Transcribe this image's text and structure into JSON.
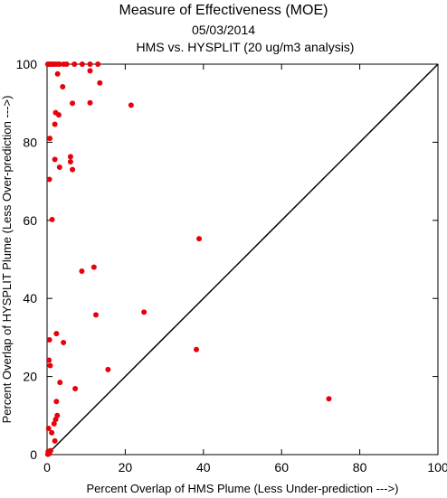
{
  "chart_data": {
    "type": "scatter",
    "title": "Measure of Effectiveness (MOE)",
    "subtitle": "05/03/2014",
    "subtitle2": "HMS vs. HYSPLIT  (20 ug/m3 analysis)",
    "xlabel": "Percent Overlap of HMS Plume (Less Under-prediction --->)",
    "ylabel": "Percent Overlap of HYSPLIT Plume (Less Over-prediction --->)",
    "xlim": [
      0,
      100
    ],
    "ylim": [
      0,
      100
    ],
    "xticks": [
      "0",
      "20",
      "40",
      "60",
      "80",
      "100"
    ],
    "yticks": [
      "0",
      "20",
      "40",
      "60",
      "80",
      "100"
    ],
    "grid": false,
    "reference_line": "diagonal y = x",
    "point_color": "#e8000b",
    "points": [
      [
        0.2,
        100
      ],
      [
        0.6,
        100
      ],
      [
        1.0,
        100
      ],
      [
        1.5,
        100
      ],
      [
        2.0,
        100
      ],
      [
        2.6,
        100
      ],
      [
        3.2,
        100
      ],
      [
        4.3,
        100
      ],
      [
        5.0,
        100
      ],
      [
        7.0,
        100
      ],
      [
        9.0,
        100
      ],
      [
        11.0,
        100
      ],
      [
        13.0,
        100
      ],
      [
        2.7,
        97.5
      ],
      [
        11.0,
        98.3
      ],
      [
        4.0,
        94.2
      ],
      [
        13.5,
        95.2
      ],
      [
        6.5,
        90.0
      ],
      [
        11.0,
        90.1
      ],
      [
        21.5,
        89.5
      ],
      [
        2.2,
        87.6
      ],
      [
        3.0,
        87.0
      ],
      [
        2.0,
        84.6
      ],
      [
        0.7,
        81.0
      ],
      [
        6.0,
        76.3
      ],
      [
        2.0,
        75.6
      ],
      [
        6.0,
        75.0
      ],
      [
        3.2,
        73.6
      ],
      [
        6.5,
        73.0
      ],
      [
        0.6,
        70.5
      ],
      [
        1.3,
        60.2
      ],
      [
        38.9,
        55.3
      ],
      [
        12.0,
        48.0
      ],
      [
        8.9,
        47.0
      ],
      [
        24.8,
        36.5
      ],
      [
        12.5,
        35.8
      ],
      [
        2.4,
        31.0
      ],
      [
        4.2,
        28.7
      ],
      [
        0.6,
        29.4
      ],
      [
        38.2,
        26.9
      ],
      [
        0.5,
        24.2
      ],
      [
        0.8,
        22.8
      ],
      [
        15.6,
        21.8
      ],
      [
        3.3,
        18.5
      ],
      [
        7.2,
        16.9
      ],
      [
        2.4,
        13.6
      ],
      [
        72.1,
        14.3
      ],
      [
        2.6,
        10.0
      ],
      [
        2.2,
        9.0
      ],
      [
        1.8,
        7.9
      ],
      [
        0.4,
        6.7
      ],
      [
        1.2,
        5.6
      ],
      [
        2.0,
        3.5
      ],
      [
        0.3,
        0.8
      ],
      [
        0.6,
        0.3
      ],
      [
        0.9,
        1.0
      ],
      [
        0.2,
        0.1
      ]
    ]
  }
}
